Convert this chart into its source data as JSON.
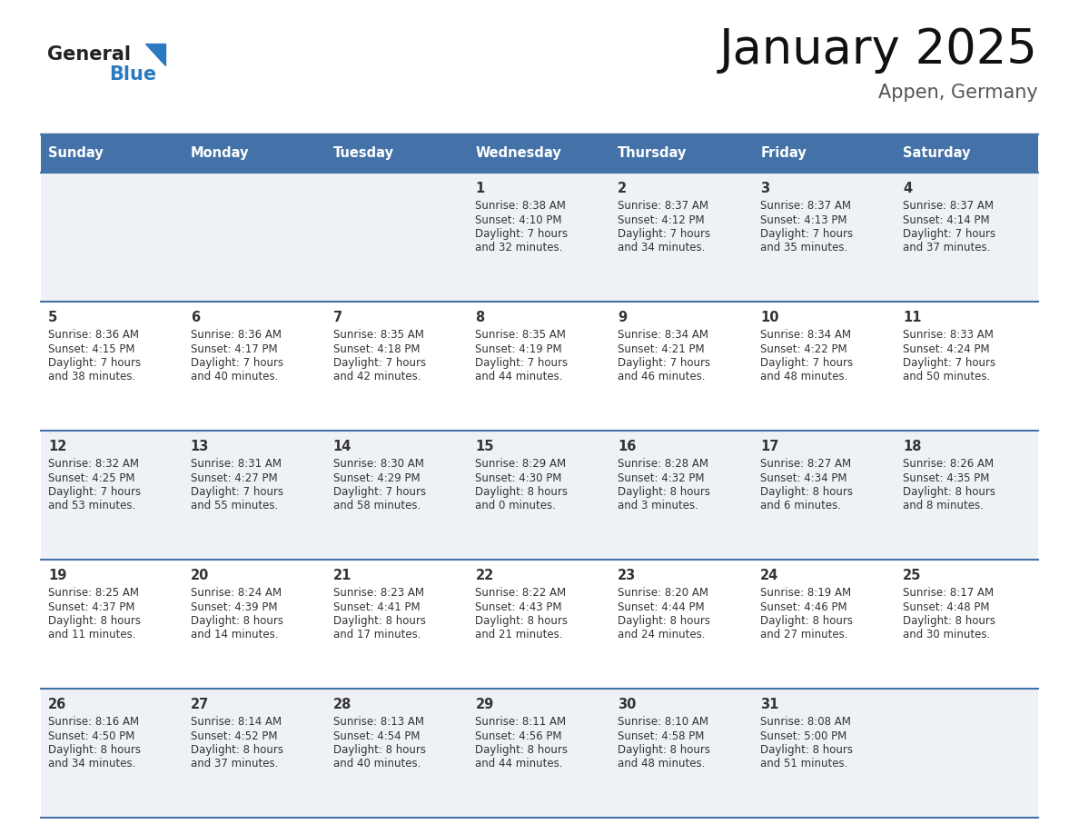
{
  "title": "January 2025",
  "subtitle": "Appen, Germany",
  "days_of_week": [
    "Sunday",
    "Monday",
    "Tuesday",
    "Wednesday",
    "Thursday",
    "Friday",
    "Saturday"
  ],
  "header_bg": "#4472a8",
  "header_text": "#ffffff",
  "row_bg_odd": "#eef1f5",
  "row_bg_even": "#ffffff",
  "divider_color": "#4472a8",
  "cell_text_color": "#333333",
  "day_num_color": "#333333",
  "title_color": "#111111",
  "subtitle_color": "#555555",
  "logo_general_color": "#222222",
  "logo_blue_color": "#2a7abf",
  "calendar": [
    [
      {
        "day": "",
        "sunrise": "",
        "sunset": "",
        "daylight_h": "",
        "daylight_m": ""
      },
      {
        "day": "",
        "sunrise": "",
        "sunset": "",
        "daylight_h": "",
        "daylight_m": ""
      },
      {
        "day": "",
        "sunrise": "",
        "sunset": "",
        "daylight_h": "",
        "daylight_m": ""
      },
      {
        "day": "1",
        "sunrise": "8:38 AM",
        "sunset": "4:10 PM",
        "daylight_h": "7 hours",
        "daylight_m": "and 32 minutes."
      },
      {
        "day": "2",
        "sunrise": "8:37 AM",
        "sunset": "4:12 PM",
        "daylight_h": "7 hours",
        "daylight_m": "and 34 minutes."
      },
      {
        "day": "3",
        "sunrise": "8:37 AM",
        "sunset": "4:13 PM",
        "daylight_h": "7 hours",
        "daylight_m": "and 35 minutes."
      },
      {
        "day": "4",
        "sunrise": "8:37 AM",
        "sunset": "4:14 PM",
        "daylight_h": "7 hours",
        "daylight_m": "and 37 minutes."
      }
    ],
    [
      {
        "day": "5",
        "sunrise": "8:36 AM",
        "sunset": "4:15 PM",
        "daylight_h": "7 hours",
        "daylight_m": "and 38 minutes."
      },
      {
        "day": "6",
        "sunrise": "8:36 AM",
        "sunset": "4:17 PM",
        "daylight_h": "7 hours",
        "daylight_m": "and 40 minutes."
      },
      {
        "day": "7",
        "sunrise": "8:35 AM",
        "sunset": "4:18 PM",
        "daylight_h": "7 hours",
        "daylight_m": "and 42 minutes."
      },
      {
        "day": "8",
        "sunrise": "8:35 AM",
        "sunset": "4:19 PM",
        "daylight_h": "7 hours",
        "daylight_m": "and 44 minutes."
      },
      {
        "day": "9",
        "sunrise": "8:34 AM",
        "sunset": "4:21 PM",
        "daylight_h": "7 hours",
        "daylight_m": "and 46 minutes."
      },
      {
        "day": "10",
        "sunrise": "8:34 AM",
        "sunset": "4:22 PM",
        "daylight_h": "7 hours",
        "daylight_m": "and 48 minutes."
      },
      {
        "day": "11",
        "sunrise": "8:33 AM",
        "sunset": "4:24 PM",
        "daylight_h": "7 hours",
        "daylight_m": "and 50 minutes."
      }
    ],
    [
      {
        "day": "12",
        "sunrise": "8:32 AM",
        "sunset": "4:25 PM",
        "daylight_h": "7 hours",
        "daylight_m": "and 53 minutes."
      },
      {
        "day": "13",
        "sunrise": "8:31 AM",
        "sunset": "4:27 PM",
        "daylight_h": "7 hours",
        "daylight_m": "and 55 minutes."
      },
      {
        "day": "14",
        "sunrise": "8:30 AM",
        "sunset": "4:29 PM",
        "daylight_h": "7 hours",
        "daylight_m": "and 58 minutes."
      },
      {
        "day": "15",
        "sunrise": "8:29 AM",
        "sunset": "4:30 PM",
        "daylight_h": "8 hours",
        "daylight_m": "and 0 minutes."
      },
      {
        "day": "16",
        "sunrise": "8:28 AM",
        "sunset": "4:32 PM",
        "daylight_h": "8 hours",
        "daylight_m": "and 3 minutes."
      },
      {
        "day": "17",
        "sunrise": "8:27 AM",
        "sunset": "4:34 PM",
        "daylight_h": "8 hours",
        "daylight_m": "and 6 minutes."
      },
      {
        "day": "18",
        "sunrise": "8:26 AM",
        "sunset": "4:35 PM",
        "daylight_h": "8 hours",
        "daylight_m": "and 8 minutes."
      }
    ],
    [
      {
        "day": "19",
        "sunrise": "8:25 AM",
        "sunset": "4:37 PM",
        "daylight_h": "8 hours",
        "daylight_m": "and 11 minutes."
      },
      {
        "day": "20",
        "sunrise": "8:24 AM",
        "sunset": "4:39 PM",
        "daylight_h": "8 hours",
        "daylight_m": "and 14 minutes."
      },
      {
        "day": "21",
        "sunrise": "8:23 AM",
        "sunset": "4:41 PM",
        "daylight_h": "8 hours",
        "daylight_m": "and 17 minutes."
      },
      {
        "day": "22",
        "sunrise": "8:22 AM",
        "sunset": "4:43 PM",
        "daylight_h": "8 hours",
        "daylight_m": "and 21 minutes."
      },
      {
        "day": "23",
        "sunrise": "8:20 AM",
        "sunset": "4:44 PM",
        "daylight_h": "8 hours",
        "daylight_m": "and 24 minutes."
      },
      {
        "day": "24",
        "sunrise": "8:19 AM",
        "sunset": "4:46 PM",
        "daylight_h": "8 hours",
        "daylight_m": "and 27 minutes."
      },
      {
        "day": "25",
        "sunrise": "8:17 AM",
        "sunset": "4:48 PM",
        "daylight_h": "8 hours",
        "daylight_m": "and 30 minutes."
      }
    ],
    [
      {
        "day": "26",
        "sunrise": "8:16 AM",
        "sunset": "4:50 PM",
        "daylight_h": "8 hours",
        "daylight_m": "and 34 minutes."
      },
      {
        "day": "27",
        "sunrise": "8:14 AM",
        "sunset": "4:52 PM",
        "daylight_h": "8 hours",
        "daylight_m": "and 37 minutes."
      },
      {
        "day": "28",
        "sunrise": "8:13 AM",
        "sunset": "4:54 PM",
        "daylight_h": "8 hours",
        "daylight_m": "and 40 minutes."
      },
      {
        "day": "29",
        "sunrise": "8:11 AM",
        "sunset": "4:56 PM",
        "daylight_h": "8 hours",
        "daylight_m": "and 44 minutes."
      },
      {
        "day": "30",
        "sunrise": "8:10 AM",
        "sunset": "4:58 PM",
        "daylight_h": "8 hours",
        "daylight_m": "and 48 minutes."
      },
      {
        "day": "31",
        "sunrise": "8:08 AM",
        "sunset": "5:00 PM",
        "daylight_h": "8 hours",
        "daylight_m": "and 51 minutes."
      },
      {
        "day": "",
        "sunrise": "",
        "sunset": "",
        "daylight_h": "",
        "daylight_m": ""
      }
    ]
  ]
}
